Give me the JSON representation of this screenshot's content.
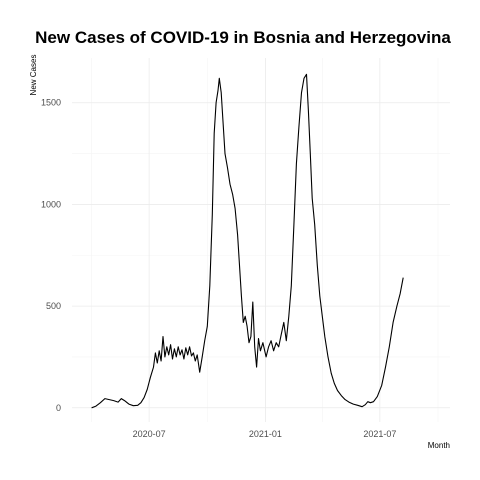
{
  "chart_data": {
    "type": "line",
    "title": "New Cases of COVID-19 in Bosnia and Herzegovina",
    "xlabel": "Month",
    "ylabel": "New Cases",
    "x_ticks": [
      "2020-07",
      "2021-01",
      "2021-07"
    ],
    "y_ticks": [
      0,
      500,
      1000,
      1500
    ],
    "xlim": [
      "2020-03-01",
      "2021-10-20"
    ],
    "ylim": [
      -70,
      1720
    ],
    "grid": true,
    "legend": "none",
    "series": [
      {
        "color": "#000000",
        "points": [
          [
            "2020-04-01",
            0
          ],
          [
            "2020-04-08",
            8
          ],
          [
            "2020-04-15",
            25
          ],
          [
            "2020-04-22",
            45
          ],
          [
            "2020-04-29",
            40
          ],
          [
            "2020-05-06",
            35
          ],
          [
            "2020-05-13",
            28
          ],
          [
            "2020-05-18",
            45
          ],
          [
            "2020-05-23",
            35
          ],
          [
            "2020-05-30",
            18
          ],
          [
            "2020-06-06",
            10
          ],
          [
            "2020-06-13",
            12
          ],
          [
            "2020-06-18",
            25
          ],
          [
            "2020-06-23",
            50
          ],
          [
            "2020-06-28",
            90
          ],
          [
            "2020-07-03",
            150
          ],
          [
            "2020-07-08",
            200
          ],
          [
            "2020-07-11",
            270
          ],
          [
            "2020-07-14",
            220
          ],
          [
            "2020-07-17",
            280
          ],
          [
            "2020-07-20",
            230
          ],
          [
            "2020-07-23",
            350
          ],
          [
            "2020-07-26",
            250
          ],
          [
            "2020-07-29",
            300
          ],
          [
            "2020-08-01",
            260
          ],
          [
            "2020-08-04",
            310
          ],
          [
            "2020-08-07",
            240
          ],
          [
            "2020-08-10",
            290
          ],
          [
            "2020-08-13",
            250
          ],
          [
            "2020-08-16",
            300
          ],
          [
            "2020-08-19",
            260
          ],
          [
            "2020-08-22",
            285
          ],
          [
            "2020-08-25",
            240
          ],
          [
            "2020-08-28",
            295
          ],
          [
            "2020-08-31",
            260
          ],
          [
            "2020-09-03",
            300
          ],
          [
            "2020-09-06",
            255
          ],
          [
            "2020-09-09",
            270
          ],
          [
            "2020-09-12",
            230
          ],
          [
            "2020-09-15",
            260
          ],
          [
            "2020-09-19",
            175
          ],
          [
            "2020-09-23",
            250
          ],
          [
            "2020-09-27",
            330
          ],
          [
            "2020-10-01",
            400
          ],
          [
            "2020-10-05",
            600
          ],
          [
            "2020-10-09",
            950
          ],
          [
            "2020-10-12",
            1350
          ],
          [
            "2020-10-15",
            1500
          ],
          [
            "2020-10-18",
            1560
          ],
          [
            "2020-10-20",
            1620
          ],
          [
            "2020-10-23",
            1550
          ],
          [
            "2020-10-26",
            1400
          ],
          [
            "2020-10-29",
            1250
          ],
          [
            "2020-11-02",
            1180
          ],
          [
            "2020-11-06",
            1100
          ],
          [
            "2020-11-10",
            1050
          ],
          [
            "2020-11-14",
            980
          ],
          [
            "2020-11-18",
            850
          ],
          [
            "2020-11-21",
            700
          ],
          [
            "2020-11-24",
            550
          ],
          [
            "2020-11-27",
            420
          ],
          [
            "2020-11-30",
            450
          ],
          [
            "2020-12-03",
            400
          ],
          [
            "2020-12-06",
            320
          ],
          [
            "2020-12-09",
            350
          ],
          [
            "2020-12-12",
            520
          ],
          [
            "2020-12-15",
            300
          ],
          [
            "2020-12-18",
            200
          ],
          [
            "2020-12-21",
            340
          ],
          [
            "2020-12-24",
            280
          ],
          [
            "2020-12-28",
            320
          ],
          [
            "2021-01-02",
            250
          ],
          [
            "2021-01-06",
            300
          ],
          [
            "2021-01-10",
            330
          ],
          [
            "2021-01-14",
            280
          ],
          [
            "2021-01-18",
            320
          ],
          [
            "2021-01-22",
            300
          ],
          [
            "2021-01-26",
            360
          ],
          [
            "2021-01-30",
            420
          ],
          [
            "2021-02-03",
            330
          ],
          [
            "2021-02-07",
            450
          ],
          [
            "2021-02-11",
            600
          ],
          [
            "2021-02-15",
            900
          ],
          [
            "2021-02-19",
            1200
          ],
          [
            "2021-02-23",
            1380
          ],
          [
            "2021-02-27",
            1550
          ],
          [
            "2021-03-03",
            1620
          ],
          [
            "2021-03-07",
            1640
          ],
          [
            "2021-03-10",
            1460
          ],
          [
            "2021-03-13",
            1250
          ],
          [
            "2021-03-16",
            1030
          ],
          [
            "2021-03-20",
            900
          ],
          [
            "2021-03-24",
            700
          ],
          [
            "2021-03-28",
            550
          ],
          [
            "2021-04-01",
            450
          ],
          [
            "2021-04-05",
            350
          ],
          [
            "2021-04-10",
            250
          ],
          [
            "2021-04-15",
            170
          ],
          [
            "2021-04-20",
            120
          ],
          [
            "2021-04-25",
            85
          ],
          [
            "2021-05-01",
            60
          ],
          [
            "2021-05-07",
            40
          ],
          [
            "2021-05-13",
            28
          ],
          [
            "2021-05-20",
            18
          ],
          [
            "2021-05-27",
            12
          ],
          [
            "2021-06-03",
            5
          ],
          [
            "2021-06-08",
            15
          ],
          [
            "2021-06-12",
            30
          ],
          [
            "2021-06-16",
            25
          ],
          [
            "2021-06-21",
            30
          ],
          [
            "2021-06-27",
            55
          ],
          [
            "2021-07-04",
            110
          ],
          [
            "2021-07-10",
            200
          ],
          [
            "2021-07-16",
            300
          ],
          [
            "2021-07-22",
            420
          ],
          [
            "2021-07-28",
            500
          ],
          [
            "2021-08-02",
            560
          ],
          [
            "2021-08-07",
            640
          ]
        ]
      }
    ]
  }
}
